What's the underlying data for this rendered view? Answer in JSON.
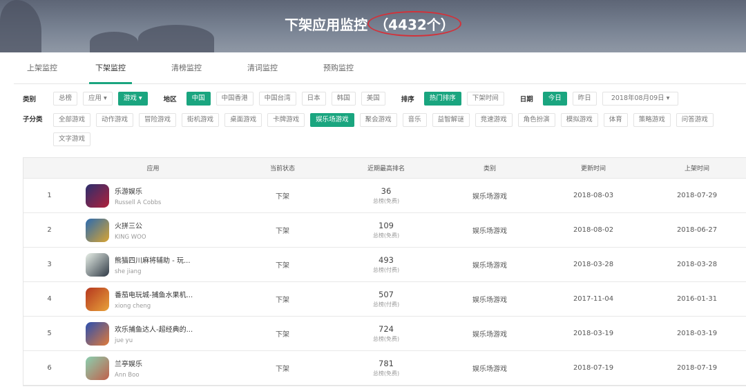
{
  "header": {
    "title": "下架应用监控",
    "count": "（4432个）",
    "highlight_color": "#d2323a"
  },
  "tabs": [
    {
      "label": "上架监控"
    },
    {
      "label": "下架监控",
      "active": true
    },
    {
      "label": "清榜监控"
    },
    {
      "label": "清词监控"
    },
    {
      "label": "预购监控"
    }
  ],
  "accent": "#1aa57f",
  "filters": {
    "category_label": "类别",
    "category": [
      "总榜",
      "应用 ▾",
      "游戏 ▾"
    ],
    "region_label": "地区",
    "regions": [
      "中国",
      "中国香港",
      "中国台湾",
      "日本",
      "韩国",
      "美国"
    ],
    "sort_label": "排序",
    "sorts": [
      "热门排序",
      "下架时间"
    ],
    "date_label": "日期",
    "dates": [
      "今日",
      "昨日"
    ],
    "date_value": "2018年08月09日 ▾",
    "sub_label": "子分类",
    "subs": [
      "全部游戏",
      "动作游戏",
      "冒险游戏",
      "街机游戏",
      "桌面游戏",
      "卡牌游戏",
      "娱乐场游戏",
      "聚会游戏",
      "音乐",
      "益智解谜",
      "竞速游戏",
      "角色扮演",
      "模拟游戏",
      "体育",
      "策略游戏",
      "问答游戏",
      "文字游戏"
    ]
  },
  "table": {
    "headers": [
      "",
      "应用",
      "当前状态",
      "近期最高排名",
      "类别",
      "更新时间",
      "上架时间"
    ],
    "rows": [
      {
        "idx": "1",
        "name": "乐游娱乐",
        "dev": "Russell A Cobbs",
        "status": "下架",
        "rank": "36",
        "rank_sub": "总榜(免费)",
        "cat": "娱乐场游戏",
        "updated": "2018-08-03",
        "released": "2018-07-29"
      },
      {
        "idx": "2",
        "name": "火拼三公",
        "dev": "KING WOO",
        "status": "下架",
        "rank": "109",
        "rank_sub": "总榜(免费)",
        "cat": "娱乐场游戏",
        "updated": "2018-08-02",
        "released": "2018-06-27"
      },
      {
        "idx": "3",
        "name": "熊猫四川麻将辅助 - 玩...",
        "dev": "she jiang",
        "status": "下架",
        "rank": "493",
        "rank_sub": "总榜(付费)",
        "cat": "娱乐场游戏",
        "updated": "2018-03-28",
        "released": "2018-03-28"
      },
      {
        "idx": "4",
        "name": "番茄电玩城-捕鱼水果机...",
        "dev": "xiong cheng",
        "status": "下架",
        "rank": "507",
        "rank_sub": "总榜(付费)",
        "cat": "娱乐场游戏",
        "updated": "2017-11-04",
        "released": "2016-01-31"
      },
      {
        "idx": "5",
        "name": "欢乐捕鱼达人-超经典的...",
        "dev": "jue yu",
        "status": "下架",
        "rank": "724",
        "rank_sub": "总榜(免费)",
        "cat": "娱乐场游戏",
        "updated": "2018-03-19",
        "released": "2018-03-19"
      },
      {
        "idx": "6",
        "name": "兰亭娱乐",
        "dev": "Ann Boo",
        "status": "下架",
        "rank": "781",
        "rank_sub": "总榜(免费)",
        "cat": "娱乐场游戏",
        "updated": "2018-07-19",
        "released": "2018-07-19"
      }
    ]
  }
}
